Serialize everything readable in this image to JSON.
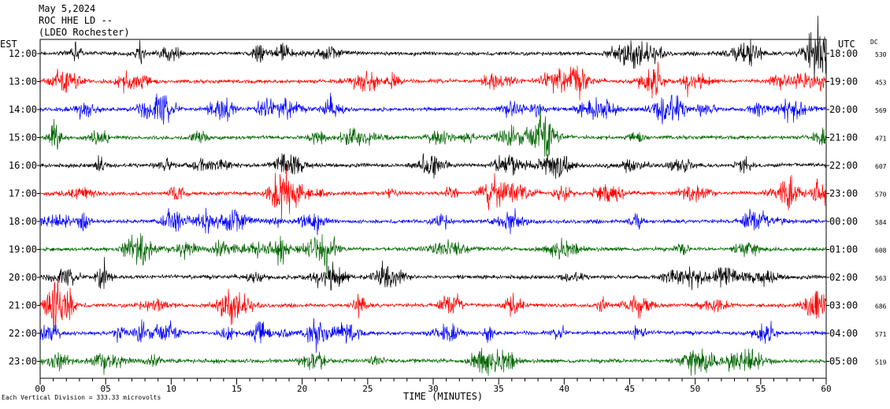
{
  "chart_data": {
    "type": "line",
    "title_lines": [
      "May 5,2024",
      "ROC HHE LD --",
      "(LDEO Rochester)"
    ],
    "xlabel": "TIME (MINUTES)",
    "xlim": [
      0,
      60
    ],
    "x_ticks": [
      "00",
      "05",
      "10",
      "15",
      "20",
      "25",
      "30",
      "35",
      "40",
      "45",
      "50",
      "55",
      "60"
    ],
    "left_axis_label": "EST",
    "right_axis_label": "UTC",
    "dc_label": "DC",
    "footnote": "Each Vertical Division =  333.33 microvolts",
    "trace_colors": [
      "#000000",
      "#ff0000",
      "#0000ff",
      "#006400"
    ],
    "rows": [
      {
        "est": "12:00",
        "utc": "18:00",
        "dc": "530"
      },
      {
        "est": "13:00",
        "utc": "19:00",
        "dc": "453"
      },
      {
        "est": "14:00",
        "utc": "20:00",
        "dc": "569"
      },
      {
        "est": "15:00",
        "utc": "21:00",
        "dc": "471"
      },
      {
        "est": "16:00",
        "utc": "22:00",
        "dc": "607"
      },
      {
        "est": "17:00",
        "utc": "23:00",
        "dc": "570"
      },
      {
        "est": "18:00",
        "utc": "00:00",
        "dc": "584"
      },
      {
        "est": "19:00",
        "utc": "01:00",
        "dc": "608"
      },
      {
        "est": "20:00",
        "utc": "02:00",
        "dc": "563"
      },
      {
        "est": "21:00",
        "utc": "03:00",
        "dc": "686"
      },
      {
        "est": "22:00",
        "utc": "04:00",
        "dc": "571"
      },
      {
        "est": "23:00",
        "utc": "05:00",
        "dc": "519"
      }
    ]
  }
}
